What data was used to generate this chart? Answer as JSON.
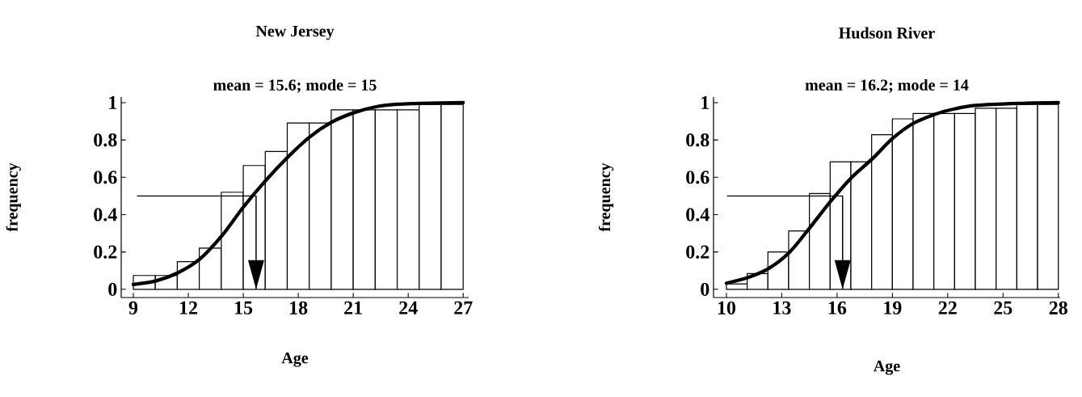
{
  "chart_data": [
    {
      "type": "histogram",
      "title": "New Jersey",
      "subtitle": "mean = 15.6; mode = 15",
      "xlabel": "Age",
      "ylabel": "frequency",
      "color": "#ffffff",
      "bins": [
        9,
        10.2,
        11.4,
        12.6,
        13.8,
        15,
        16.2,
        17.4,
        18.6,
        19.8,
        21,
        22.2,
        23.4,
        24.6,
        25.8,
        27
      ],
      "values": [
        0.074,
        0.074,
        0.148,
        0.221,
        0.52,
        0.663,
        0.738,
        0.891,
        0.891,
        0.961,
        0.961,
        0.961,
        0.961,
        0.99,
        0.99
      ],
      "series": [
        {
          "type": "line",
          "color": "#000000",
          "x": [
            9,
            10.2,
            11.4,
            12.6,
            13.8,
            15,
            16.2,
            17.4,
            18.6,
            19.8,
            21,
            22.2,
            23.4,
            24.6,
            27
          ],
          "values": [
            0.026,
            0.044,
            0.087,
            0.16,
            0.283,
            0.44,
            0.58,
            0.705,
            0.814,
            0.894,
            0.945,
            0.977,
            0.991,
            0.996,
            1.0
          ]
        },
        {
          "type": "line",
          "color": "#000000",
          "x": [
            9.2,
            15.7,
            15.7
          ],
          "values": [
            0.5,
            0.5,
            0
          ]
        }
      ],
      "xlim": [
        8.34,
        27.3
      ],
      "ylim": [
        -0.044,
        1.03
      ],
      "xticks": [
        9,
        12,
        15,
        18,
        21,
        24,
        27
      ],
      "yticks": [
        0,
        0.2,
        0.4,
        0.6,
        0.8,
        1
      ]
    },
    {
      "type": "histogram",
      "title": "Hudson River",
      "subtitle": "mean = 16.2; mode = 14",
      "xlabel": "Age",
      "ylabel": "frequency",
      "color": "#ffffff",
      "bins": [
        10,
        11.125,
        12.25,
        13.375,
        14.5,
        15.625,
        16.75,
        17.875,
        19,
        20.125,
        21.25,
        22.375,
        23.5,
        24.625,
        25.75,
        26.875,
        28
      ],
      "values": [
        0.029,
        0.084,
        0.2,
        0.313,
        0.513,
        0.683,
        0.683,
        0.828,
        0.913,
        0.942,
        0.942,
        0.942,
        0.97,
        0.97,
        0.99,
        0.99
      ],
      "series": [
        {
          "type": "line",
          "color": "#000000",
          "x": [
            10,
            11.1,
            12.25,
            13.4,
            14.5,
            15.6,
            16.8,
            17.9,
            19,
            20.1,
            21.3,
            22.4,
            23.5,
            25.8,
            28
          ],
          "values": [
            0.033,
            0.061,
            0.109,
            0.196,
            0.327,
            0.465,
            0.6,
            0.698,
            0.807,
            0.887,
            0.937,
            0.967,
            0.985,
            0.996,
            1.0
          ]
        },
        {
          "type": "line",
          "color": "#000000",
          "x": [
            10.03,
            16.3,
            16.3
          ],
          "values": [
            0.5,
            0.5,
            0
          ]
        }
      ],
      "xlim": [
        9.3,
        28.1
      ],
      "ylim": [
        -0.044,
        1.03
      ],
      "xticks": [
        10,
        13,
        16,
        19,
        22,
        25,
        28
      ],
      "yticks": [
        0,
        0.2,
        0.4,
        0.6,
        0.8,
        1
      ]
    }
  ]
}
